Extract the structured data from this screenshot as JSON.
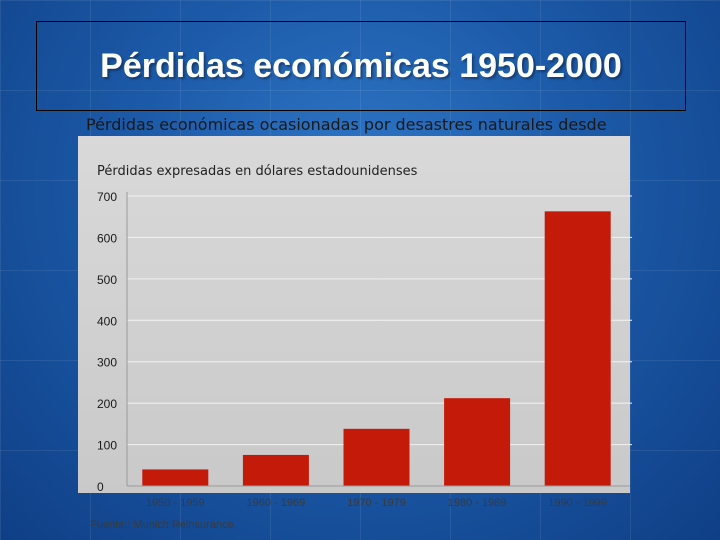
{
  "slide": {
    "title": "Pérdidas económicas 1950-2000",
    "chart_header": "Pérdidas económicas ocasionadas por desastres naturales desde",
    "source": "Fuente:: Munich Reinsurance"
  },
  "colors": {
    "background": "#1c5aa8",
    "bar": "#c41a0a",
    "panel": "#d0d0d0"
  },
  "chart_data": {
    "type": "bar",
    "title": "Pérdidas económicas ocasionadas por desastres naturales desde",
    "subtitle": "Pérdidas expresadas en dólares estadounidenses",
    "categories": [
      "1950 - 1959",
      "1960 - 1969",
      "1970 - 1979",
      "1980 - 1989",
      "1990 - 1999"
    ],
    "values": [
      40,
      75,
      138,
      212,
      663
    ],
    "ylim": [
      0,
      700
    ],
    "yticks": [
      0,
      100,
      200,
      300,
      400,
      500,
      600,
      700
    ],
    "xlabel": "",
    "ylabel": "",
    "grid": true,
    "legend": "none"
  }
}
